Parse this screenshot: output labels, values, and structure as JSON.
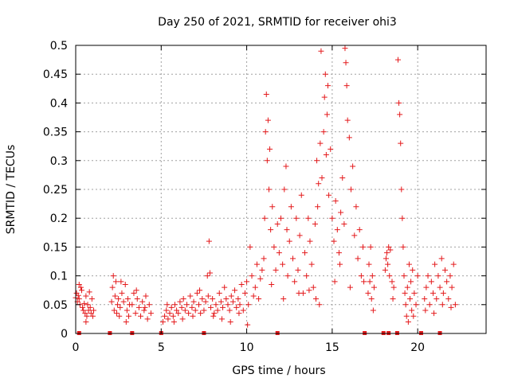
{
  "chart_data": {
    "type": "scatter",
    "title": "Day 250 of 2021, SRMTID for receiver ohi3",
    "xlabel": "GPS time / hours",
    "ylabel": "SRMTID / TECUs",
    "xlim": [
      0,
      24
    ],
    "ylim": [
      0,
      0.5
    ],
    "x_ticks": [
      0,
      5,
      10,
      15,
      20
    ],
    "x_tick_labels": [
      "0",
      "5",
      "10",
      "15",
      "20"
    ],
    "y_ticks": [
      0,
      0.05,
      0.1,
      0.15,
      0.2,
      0.25,
      0.3,
      0.35,
      0.4,
      0.45,
      0.5
    ],
    "y_tick_labels": [
      "0",
      "0.05",
      "0.1",
      "0.15",
      "0.2",
      "0.25",
      "0.3",
      "0.35",
      "0.4",
      "0.45",
      "0.5"
    ],
    "grid": true,
    "marker": "plus",
    "series_color": "#e41a1c",
    "series": [
      {
        "name": "SRMTID",
        "points": [
          [
            0.0,
            0.062
          ],
          [
            0.05,
            0.07
          ],
          [
            0.1,
            0.055
          ],
          [
            0.15,
            0.066
          ],
          [
            0.2,
            0.06
          ],
          [
            0.25,
            0.05
          ],
          [
            0.3,
            0.08
          ],
          [
            0.35,
            0.075
          ],
          [
            0.4,
            0.045
          ],
          [
            0.45,
            0.04
          ],
          [
            0.5,
            0.052
          ],
          [
            0.55,
            0.035
          ],
          [
            0.6,
            0.065
          ],
          [
            0.65,
            0.03
          ],
          [
            0.7,
            0.05
          ],
          [
            0.75,
            0.04
          ],
          [
            0.8,
            0.072
          ],
          [
            0.85,
            0.045
          ],
          [
            0.9,
            0.035
          ],
          [
            0.95,
            0.06
          ],
          [
            1.0,
            0.03
          ],
          [
            1.05,
            0.04
          ],
          [
            0.2,
            0.085
          ],
          [
            0.6,
            0.02
          ],
          [
            2.1,
            0.055
          ],
          [
            2.15,
            0.08
          ],
          [
            2.2,
            0.1
          ],
          [
            2.25,
            0.04
          ],
          [
            2.3,
            0.065
          ],
          [
            2.35,
            0.09
          ],
          [
            2.4,
            0.035
          ],
          [
            2.45,
            0.05
          ],
          [
            2.5,
            0.06
          ],
          [
            2.55,
            0.03
          ],
          [
            2.6,
            0.045
          ],
          [
            2.7,
            0.07
          ],
          [
            2.8,
            0.055
          ],
          [
            2.9,
            0.085
          ],
          [
            3.0,
            0.04
          ],
          [
            3.05,
            0.06
          ],
          [
            3.1,
            0.03
          ],
          [
            3.15,
            0.05
          ],
          [
            2.65,
            0.09
          ],
          [
            2.95,
            0.02
          ],
          [
            3.3,
            0.05
          ],
          [
            3.4,
            0.07
          ],
          [
            3.5,
            0.035
          ],
          [
            3.6,
            0.06
          ],
          [
            3.7,
            0.045
          ],
          [
            3.8,
            0.03
          ],
          [
            3.9,
            0.055
          ],
          [
            4.0,
            0.04
          ],
          [
            4.1,
            0.065
          ],
          [
            4.2,
            0.025
          ],
          [
            4.3,
            0.05
          ],
          [
            4.4,
            0.035
          ],
          [
            3.55,
            0.075
          ],
          [
            4.05,
            0.045
          ],
          [
            5.1,
            0.02
          ],
          [
            5.2,
            0.03
          ],
          [
            5.3,
            0.04
          ],
          [
            5.4,
            0.025
          ],
          [
            5.5,
            0.035
          ],
          [
            5.6,
            0.045
          ],
          [
            5.7,
            0.03
          ],
          [
            5.8,
            0.05
          ],
          [
            5.9,
            0.04
          ],
          [
            6.0,
            0.035
          ],
          [
            6.1,
            0.055
          ],
          [
            6.2,
            0.045
          ],
          [
            6.3,
            0.06
          ],
          [
            6.4,
            0.04
          ],
          [
            6.5,
            0.05
          ],
          [
            6.6,
            0.035
          ],
          [
            6.7,
            0.065
          ],
          [
            6.8,
            0.045
          ],
          [
            6.9,
            0.055
          ],
          [
            7.0,
            0.04
          ],
          [
            7.1,
            0.07
          ],
          [
            7.2,
            0.05
          ],
          [
            7.3,
            0.035
          ],
          [
            7.4,
            0.06
          ],
          [
            5.35,
            0.05
          ],
          [
            5.75,
            0.02
          ],
          [
            6.25,
            0.025
          ],
          [
            6.85,
            0.03
          ],
          [
            7.25,
            0.075
          ],
          [
            7.5,
            0.04
          ],
          [
            7.6,
            0.055
          ],
          [
            7.7,
            0.1
          ],
          [
            7.75,
            0.065
          ],
          [
            7.8,
            0.16
          ],
          [
            7.85,
            0.105
          ],
          [
            7.9,
            0.045
          ],
          [
            8.0,
            0.06
          ],
          [
            8.1,
            0.035
          ],
          [
            8.2,
            0.05
          ],
          [
            8.3,
            0.04
          ],
          [
            8.4,
            0.07
          ],
          [
            8.5,
            0.055
          ],
          [
            8.6,
            0.045
          ],
          [
            8.7,
            0.08
          ],
          [
            8.8,
            0.06
          ],
          [
            8.9,
            0.05
          ],
          [
            9.0,
            0.04
          ],
          [
            9.1,
            0.065
          ],
          [
            9.2,
            0.055
          ],
          [
            9.3,
            0.075
          ],
          [
            9.4,
            0.045
          ],
          [
            9.5,
            0.06
          ],
          [
            9.6,
            0.05
          ],
          [
            9.7,
            0.085
          ],
          [
            9.8,
            0.04
          ],
          [
            9.9,
            0.07
          ],
          [
            10.0,
            0.09
          ],
          [
            10.1,
            0.05
          ],
          [
            10.2,
            0.15
          ],
          [
            10.3,
            0.1
          ],
          [
            10.4,
            0.065
          ],
          [
            10.5,
            0.08
          ],
          [
            10.6,
            0.12
          ],
          [
            10.7,
            0.06
          ],
          [
            10.8,
            0.095
          ],
          [
            10.9,
            0.11
          ],
          [
            8.05,
            0.03
          ],
          [
            8.55,
            0.025
          ],
          [
            9.05,
            0.02
          ],
          [
            9.55,
            0.035
          ],
          [
            10.05,
            0.015
          ],
          [
            11.0,
            0.13
          ],
          [
            11.05,
            0.2
          ],
          [
            11.1,
            0.35
          ],
          [
            11.15,
            0.415
          ],
          [
            11.2,
            0.3
          ],
          [
            11.25,
            0.37
          ],
          [
            11.3,
            0.25
          ],
          [
            11.35,
            0.32
          ],
          [
            11.4,
            0.18
          ],
          [
            11.5,
            0.22
          ],
          [
            11.6,
            0.15
          ],
          [
            11.7,
            0.11
          ],
          [
            11.8,
            0.19
          ],
          [
            11.9,
            0.14
          ],
          [
            12.0,
            0.2
          ],
          [
            12.1,
            0.12
          ],
          [
            12.2,
            0.25
          ],
          [
            12.3,
            0.29
          ],
          [
            12.35,
            0.18
          ],
          [
            12.4,
            0.1
          ],
          [
            12.5,
            0.16
          ],
          [
            12.6,
            0.22
          ],
          [
            12.7,
            0.13
          ],
          [
            12.8,
            0.09
          ],
          [
            12.9,
            0.2
          ],
          [
            13.0,
            0.11
          ],
          [
            13.1,
            0.17
          ],
          [
            13.2,
            0.24
          ],
          [
            13.3,
            0.07
          ],
          [
            13.4,
            0.14
          ],
          [
            13.5,
            0.1
          ],
          [
            13.6,
            0.2
          ],
          [
            13.7,
            0.16
          ],
          [
            13.8,
            0.12
          ],
          [
            13.9,
            0.08
          ],
          [
            14.0,
            0.19
          ],
          [
            14.1,
            0.3
          ],
          [
            14.15,
            0.22
          ],
          [
            14.2,
            0.26
          ],
          [
            14.3,
            0.33
          ],
          [
            14.35,
            0.49
          ],
          [
            14.4,
            0.27
          ],
          [
            14.5,
            0.35
          ],
          [
            14.55,
            0.41
          ],
          [
            14.6,
            0.45
          ],
          [
            14.65,
            0.31
          ],
          [
            14.7,
            0.38
          ],
          [
            14.75,
            0.43
          ],
          [
            14.8,
            0.24
          ],
          [
            14.9,
            0.32
          ],
          [
            15.0,
            0.2
          ],
          [
            15.1,
            0.16
          ],
          [
            15.2,
            0.23
          ],
          [
            15.3,
            0.18
          ],
          [
            15.4,
            0.14
          ],
          [
            15.5,
            0.21
          ],
          [
            15.6,
            0.27
          ],
          [
            15.7,
            0.19
          ],
          [
            15.75,
            0.495
          ],
          [
            15.8,
            0.47
          ],
          [
            15.85,
            0.43
          ],
          [
            15.9,
            0.37
          ],
          [
            16.0,
            0.34
          ],
          [
            16.1,
            0.25
          ],
          [
            16.2,
            0.29
          ],
          [
            16.3,
            0.17
          ],
          [
            16.4,
            0.22
          ],
          [
            16.5,
            0.13
          ],
          [
            16.6,
            0.18
          ],
          [
            16.7,
            0.1
          ],
          [
            16.8,
            0.15
          ],
          [
            16.85,
            0.09
          ],
          [
            11.45,
            0.085
          ],
          [
            12.15,
            0.06
          ],
          [
            13.05,
            0.07
          ],
          [
            13.65,
            0.075
          ],
          [
            14.05,
            0.06
          ],
          [
            14.25,
            0.05
          ],
          [
            15.15,
            0.09
          ],
          [
            15.45,
            0.12
          ],
          [
            16.05,
            0.08
          ],
          [
            17.1,
            0.07
          ],
          [
            17.15,
            0.12
          ],
          [
            17.2,
            0.09
          ],
          [
            17.25,
            0.15
          ],
          [
            17.3,
            0.06
          ],
          [
            17.35,
            0.1
          ],
          [
            17.4,
            0.04
          ],
          [
            17.45,
            0.08
          ],
          [
            18.1,
            0.11
          ],
          [
            18.15,
            0.13
          ],
          [
            18.2,
            0.14
          ],
          [
            18.25,
            0.12
          ],
          [
            18.3,
            0.15
          ],
          [
            18.35,
            0.1
          ],
          [
            18.4,
            0.145
          ],
          [
            18.5,
            0.09
          ],
          [
            18.55,
            0.06
          ],
          [
            18.6,
            0.08
          ],
          [
            18.85,
            0.475
          ],
          [
            18.9,
            0.4
          ],
          [
            18.95,
            0.38
          ],
          [
            19.0,
            0.33
          ],
          [
            19.05,
            0.25
          ],
          [
            19.1,
            0.2
          ],
          [
            19.15,
            0.15
          ],
          [
            19.2,
            0.1
          ],
          [
            19.25,
            0.07
          ],
          [
            19.3,
            0.05
          ],
          [
            19.35,
            0.03
          ],
          [
            19.4,
            0.08
          ],
          [
            19.5,
            0.12
          ],
          [
            19.55,
            0.06
          ],
          [
            19.6,
            0.09
          ],
          [
            19.65,
            0.04
          ],
          [
            19.7,
            0.11
          ],
          [
            19.8,
            0.07
          ],
          [
            19.9,
            0.05
          ],
          [
            20.0,
            0.1
          ],
          [
            19.45,
            0.02
          ],
          [
            19.75,
            0.03
          ],
          [
            20.4,
            0.06
          ],
          [
            20.5,
            0.08
          ],
          [
            20.6,
            0.1
          ],
          [
            20.7,
            0.05
          ],
          [
            20.8,
            0.09
          ],
          [
            20.9,
            0.07
          ],
          [
            21.0,
            0.12
          ],
          [
            21.1,
            0.06
          ],
          [
            21.2,
            0.1
          ],
          [
            21.3,
            0.08
          ],
          [
            21.4,
            0.13
          ],
          [
            21.5,
            0.07
          ],
          [
            21.6,
            0.11
          ],
          [
            21.7,
            0.09
          ],
          [
            21.8,
            0.06
          ],
          [
            21.9,
            0.1
          ],
          [
            22.0,
            0.08
          ],
          [
            22.1,
            0.12
          ],
          [
            22.2,
            0.05
          ],
          [
            20.45,
            0.04
          ],
          [
            20.95,
            0.035
          ],
          [
            21.45,
            0.05
          ],
          [
            21.95,
            0.045
          ]
        ]
      }
    ],
    "baseline_marks_x": [
      0.2,
      2.0,
      3.3,
      5.0,
      7.5,
      11.8,
      16.9,
      18.0,
      18.3,
      18.8,
      20.2,
      21.3
    ]
  }
}
